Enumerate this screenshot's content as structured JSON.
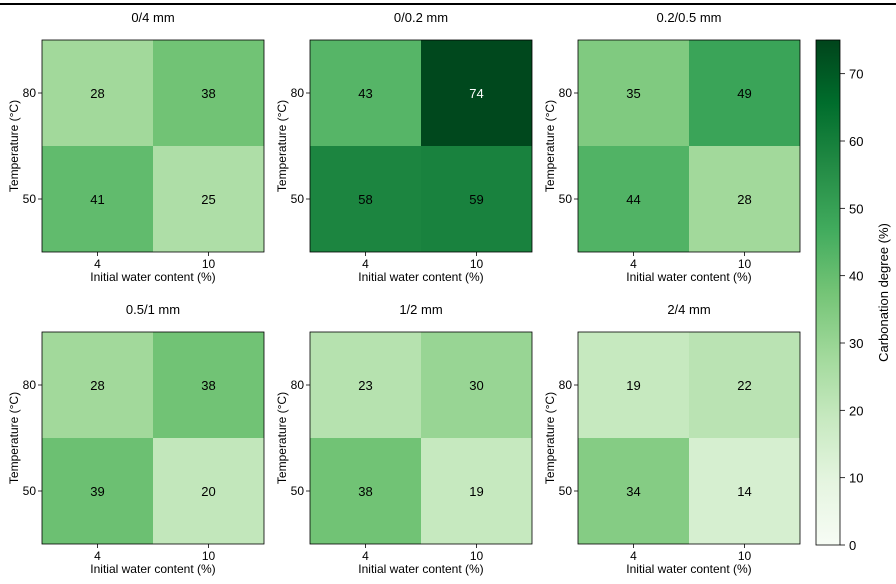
{
  "chart_data": {
    "type": "heatmap",
    "panels": [
      {
        "title": "0/4 mm",
        "values": [
          [
            28,
            38
          ],
          [
            41,
            25
          ]
        ]
      },
      {
        "title": "0/0.2 mm",
        "values": [
          [
            43,
            74
          ],
          [
            58,
            59
          ]
        ]
      },
      {
        "title": "0.2/0.5 mm",
        "values": [
          [
            35,
            49
          ],
          [
            44,
            28
          ]
        ]
      },
      {
        "title": "0.5/1 mm",
        "values": [
          [
            28,
            38
          ],
          [
            39,
            20
          ]
        ]
      },
      {
        "title": "1/2 mm",
        "values": [
          [
            23,
            30
          ],
          [
            38,
            19
          ]
        ]
      },
      {
        "title": "2/4 mm",
        "values": [
          [
            19,
            22
          ],
          [
            34,
            14
          ]
        ]
      }
    ],
    "x_categories": [
      "4",
      "10"
    ],
    "y_categories": [
      "80",
      "50"
    ],
    "xlabel": "Initial water content (%)",
    "ylabel": "Temperature (°C)",
    "colorbar": {
      "label": "Carbonation degree (%)",
      "range": [
        0,
        75
      ],
      "ticks": [
        0,
        10,
        20,
        30,
        40,
        50,
        60,
        70
      ],
      "colormap": "Greens"
    }
  }
}
